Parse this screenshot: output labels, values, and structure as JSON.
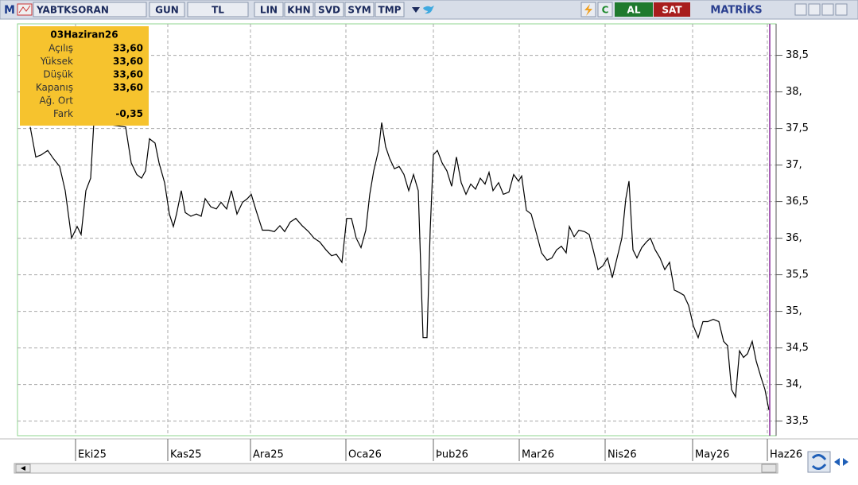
{
  "toolbar": {
    "logo": "M",
    "symbol": "YABTKSORAN",
    "period": "GUN",
    "currency": "TL",
    "buttons": [
      "LIN",
      "KHN",
      "SVD",
      "SYM",
      "TMP"
    ],
    "refresh": "C",
    "buy": "AL",
    "sell": "SAT",
    "brand": "MATRİKS"
  },
  "info_box": {
    "date": "03Haziran26",
    "rows": [
      [
        "Açılış",
        "33,60"
      ],
      [
        "Yüksek",
        "33,60"
      ],
      [
        "Düşük",
        "33,60"
      ],
      [
        "Kapanış",
        "33,60"
      ],
      [
        "Ağ. Ort"
      ],
      [
        "Fark",
        "-0,35"
      ]
    ]
  },
  "chart_data": {
    "type": "line",
    "grid": true,
    "color": "#000000",
    "xlim": [
      0,
      190
    ],
    "ylim": [
      33.3,
      38.93
    ],
    "xticks": [
      {
        "value": 14,
        "label": "Eki25"
      },
      {
        "value": 37.2,
        "label": "Kas25"
      },
      {
        "value": 58,
        "label": "Ara25"
      },
      {
        "value": 82,
        "label": "Oca26"
      },
      {
        "value": 104,
        "label": "Þub26"
      },
      {
        "value": 125.6,
        "label": "Mar26"
      },
      {
        "value": 147.2,
        "label": "Nis26"
      },
      {
        "value": 169.2,
        "label": "May26"
      },
      {
        "value": 188,
        "label": "Haz26"
      }
    ],
    "yticks": [
      {
        "value": 38.5,
        "label": "38,5"
      },
      {
        "value": 38,
        "label": "38,"
      },
      {
        "value": 37.5,
        "label": "37,5"
      },
      {
        "value": 37,
        "label": "37,"
      },
      {
        "value": 36.5,
        "label": "36,5"
      },
      {
        "value": 36,
        "label": "36,"
      },
      {
        "value": 35.5,
        "label": "35,5"
      },
      {
        "value": 35,
        "label": "35,"
      },
      {
        "value": 34.5,
        "label": "34,5"
      },
      {
        "value": 34,
        "label": "34,"
      },
      {
        "value": 33.5,
        "label": "33,5"
      }
    ],
    "x": [
      2.6,
      4,
      5.4,
      7,
      8.4,
      10,
      11.4,
      13,
      14.4,
      15.4,
      16.6,
      17.8,
      18.6,
      26.6,
      28,
      29.4,
      30.6,
      31.6,
      32.6,
      34,
      35,
      36.4,
      37.6,
      38.6,
      39.4,
      40.6,
      41.6,
      43,
      44.4,
      45.6,
      46.6,
      48,
      49.4,
      50.6,
      52,
      53.2,
      54.6,
      56,
      57.2,
      58.2,
      59.4,
      61,
      62.6,
      64,
      65.4,
      66.6,
      68,
      69.4,
      71,
      72.6,
      74,
      75.4,
      77,
      78.4,
      79.6,
      81,
      82.2,
      83.4,
      84.6,
      85.8,
      87,
      88,
      89,
      90.2,
      91,
      92,
      93,
      94.2,
      95.4,
      96.6,
      97.8,
      99,
      100.2,
      101.4,
      102.4,
      103.2,
      104,
      105,
      106.2,
      107.4,
      108.6,
      109.8,
      111,
      112.2,
      113.4,
      114.6,
      115.8,
      117,
      118,
      119,
      120.4,
      121.6,
      123,
      124.2,
      125.4,
      126.2,
      127.4,
      128.6,
      130,
      131.2,
      132.6,
      133.8,
      135,
      136.2,
      137.4,
      138.2,
      139.4,
      140.6,
      142,
      143.2,
      144.2,
      145.4,
      146.6,
      147.8,
      149,
      150.2,
      151.4,
      152.4,
      153.2,
      154.2,
      155.2,
      156.4,
      157.6,
      158.6,
      159.8,
      161,
      162.2,
      163.4,
      164.6,
      165.8,
      167,
      168.2,
      169.4,
      170.6,
      171.8,
      173,
      174.4,
      175.8,
      177,
      178,
      179,
      180,
      181,
      182,
      183,
      184.2,
      185.2,
      186.4,
      187.4,
      188.4
    ],
    "values": [
      37.52,
      37.11,
      37.14,
      37.2,
      37.09,
      36.98,
      36.65,
      36.0,
      36.16,
      36.05,
      36.65,
      36.82,
      37.58,
      37.52,
      37.03,
      36.87,
      36.82,
      36.92,
      37.36,
      37.3,
      37.03,
      36.76,
      36.33,
      36.16,
      36.33,
      36.65,
      36.35,
      36.3,
      36.33,
      36.3,
      36.54,
      36.43,
      36.4,
      36.49,
      36.4,
      36.65,
      36.33,
      36.49,
      36.54,
      36.6,
      36.38,
      36.11,
      36.11,
      36.09,
      36.17,
      36.09,
      36.22,
      36.27,
      36.17,
      36.09,
      36.0,
      35.95,
      35.84,
      35.76,
      35.78,
      35.67,
      36.27,
      36.27,
      36.0,
      35.87,
      36.11,
      36.6,
      36.92,
      37.2,
      37.58,
      37.25,
      37.09,
      36.95,
      36.98,
      36.87,
      36.65,
      36.87,
      36.65,
      34.64,
      34.64,
      36.11,
      37.14,
      37.2,
      37.03,
      36.92,
      36.71,
      37.11,
      36.76,
      36.6,
      36.74,
      36.67,
      36.82,
      36.74,
      36.9,
      36.65,
      36.76,
      36.6,
      36.63,
      36.87,
      36.78,
      36.85,
      36.38,
      36.33,
      36.05,
      35.8,
      35.7,
      35.73,
      35.84,
      35.89,
      35.8,
      36.16,
      36.02,
      36.11,
      36.09,
      36.05,
      35.84,
      35.57,
      35.62,
      35.73,
      35.46,
      35.73,
      36.0,
      36.54,
      36.78,
      35.84,
      35.73,
      35.87,
      35.95,
      36.0,
      35.84,
      35.73,
      35.57,
      35.67,
      35.29,
      35.26,
      35.22,
      35.08,
      34.8,
      34.64,
      34.86,
      34.86,
      34.89,
      34.86,
      34.59,
      34.53,
      33.93,
      33.83,
      34.46,
      34.37,
      34.42,
      34.59,
      34.32,
      34.1,
      33.93,
      33.65
    ]
  }
}
